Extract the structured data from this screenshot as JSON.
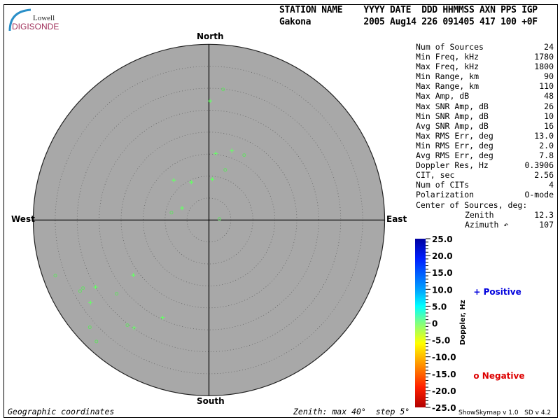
{
  "header": {
    "logo": {
      "line1": "Lowell",
      "line2": "DIGISONDE"
    },
    "labels_line": "STATION NAME    YYYY DATE  DDD HHMMSS AXN PPS IGP",
    "values_line": "Gakona          2005 Aug14 226 091405 417 100 +0F"
  },
  "directions": {
    "north": "North",
    "south": "South",
    "west": "West",
    "east": "East"
  },
  "stats": [
    {
      "label": "Num of Sources",
      "value": "24"
    },
    {
      "label": "Min Freq, kHz",
      "value": "1780"
    },
    {
      "label": "Max Freq, kHz",
      "value": "1800"
    },
    {
      "label": "Min Range, km",
      "value": "90"
    },
    {
      "label": "Max Range, km",
      "value": "110"
    },
    {
      "label": "Max Amp, dB",
      "value": "48"
    },
    {
      "label": "Max SNR Amp, dB",
      "value": "26"
    },
    {
      "label": "Min SNR Amp, dB",
      "value": "10"
    },
    {
      "label": "Avg SNR Amp, dB",
      "value": "16"
    },
    {
      "label": "Max RMS Err, deg",
      "value": "13.0"
    },
    {
      "label": "Min RMS Err, deg",
      "value": "2.0"
    },
    {
      "label": "Avg RMS Err, deg",
      "value": "7.8"
    },
    {
      "label": "Doppler Res, Hz",
      "value": "0.3906"
    },
    {
      "label": "CIT, sec",
      "value": "2.56"
    },
    {
      "label": "Num of CITs",
      "value": "4"
    },
    {
      "label": "Polarization",
      "value": "O-mode"
    }
  ],
  "center": {
    "title": "Center of Sources, deg:",
    "zenith_label": "Zenith",
    "zenith": "12.3",
    "azimuth_label": "Azimuth ↶",
    "azimuth": "107"
  },
  "colorbar": {
    "title": "Doppler, Hz",
    "ticks": [
      "25.0",
      "20.0",
      "15.0",
      "10.0",
      "5.0",
      "0",
      "-5.0",
      "-10.0",
      "-15.0",
      "-20.0",
      "-25.0"
    ],
    "range": [
      -25,
      25
    ]
  },
  "legend": {
    "positive": "Positive",
    "negative": "Negative",
    "positive_symbol": "+",
    "negative_symbol": "o",
    "positive_color": "#0000dd",
    "negative_color": "#dd0000"
  },
  "footer": {
    "left": "Geographic coordinates",
    "zenith": "Zenith: max 40°  step 5°",
    "version": "ShowSkymap v 1.0   SD v 4.2"
  },
  "chart_data": {
    "type": "scatter",
    "coordinates": "polar (zenith, azimuth)",
    "zenith_max": 40,
    "zenith_step": 5,
    "background": "#a8a8a8",
    "point_color": "#66ff66",
    "positive": [
      {
        "zenith": 27.1,
        "azimuth": 0.5
      },
      {
        "zenith": 15.2,
        "azimuth": 5.9
      },
      {
        "zenith": 16.6,
        "azimuth": 18.3
      },
      {
        "zenith": 9.3,
        "azimuth": 4.7
      },
      {
        "zenith": 12.1,
        "azimuth": 318.6
      },
      {
        "zenith": 9.5,
        "azimuth": 335
      },
      {
        "zenith": 6.7,
        "azimuth": 294
      },
      {
        "zenith": 21.3,
        "azimuth": 233.9
      },
      {
        "zenith": 30.0,
        "azimuth": 239.4
      },
      {
        "zenith": 32.9,
        "azimuth": 235.1
      },
      {
        "zenith": 24.6,
        "azimuth": 205.4
      },
      {
        "zenith": 29.9,
        "azimuth": 214.8
      }
    ],
    "negative": [
      {
        "zenith": 29.9,
        "azimuth": 6.2
      },
      {
        "zenith": 16.8,
        "azimuth": 28.5
      },
      {
        "zenith": 12.0,
        "azimuth": 18
      },
      {
        "zenith": 8.7,
        "azimuth": 281.1
      },
      {
        "zenith": 2.4,
        "azimuth": 84
      },
      {
        "zenith": 37.2,
        "azimuth": 250.1
      },
      {
        "zenith": 32.6,
        "azimuth": 241.6
      },
      {
        "zenith": 33.5,
        "azimuth": 241.1
      },
      {
        "zenith": 26.9,
        "azimuth": 231.4
      },
      {
        "zenith": 30.3,
        "azimuth": 217.8
      },
      {
        "zenith": 36.5,
        "azimuth": 228
      },
      {
        "zenith": 37.7,
        "azimuth": 222.8
      }
    ]
  }
}
